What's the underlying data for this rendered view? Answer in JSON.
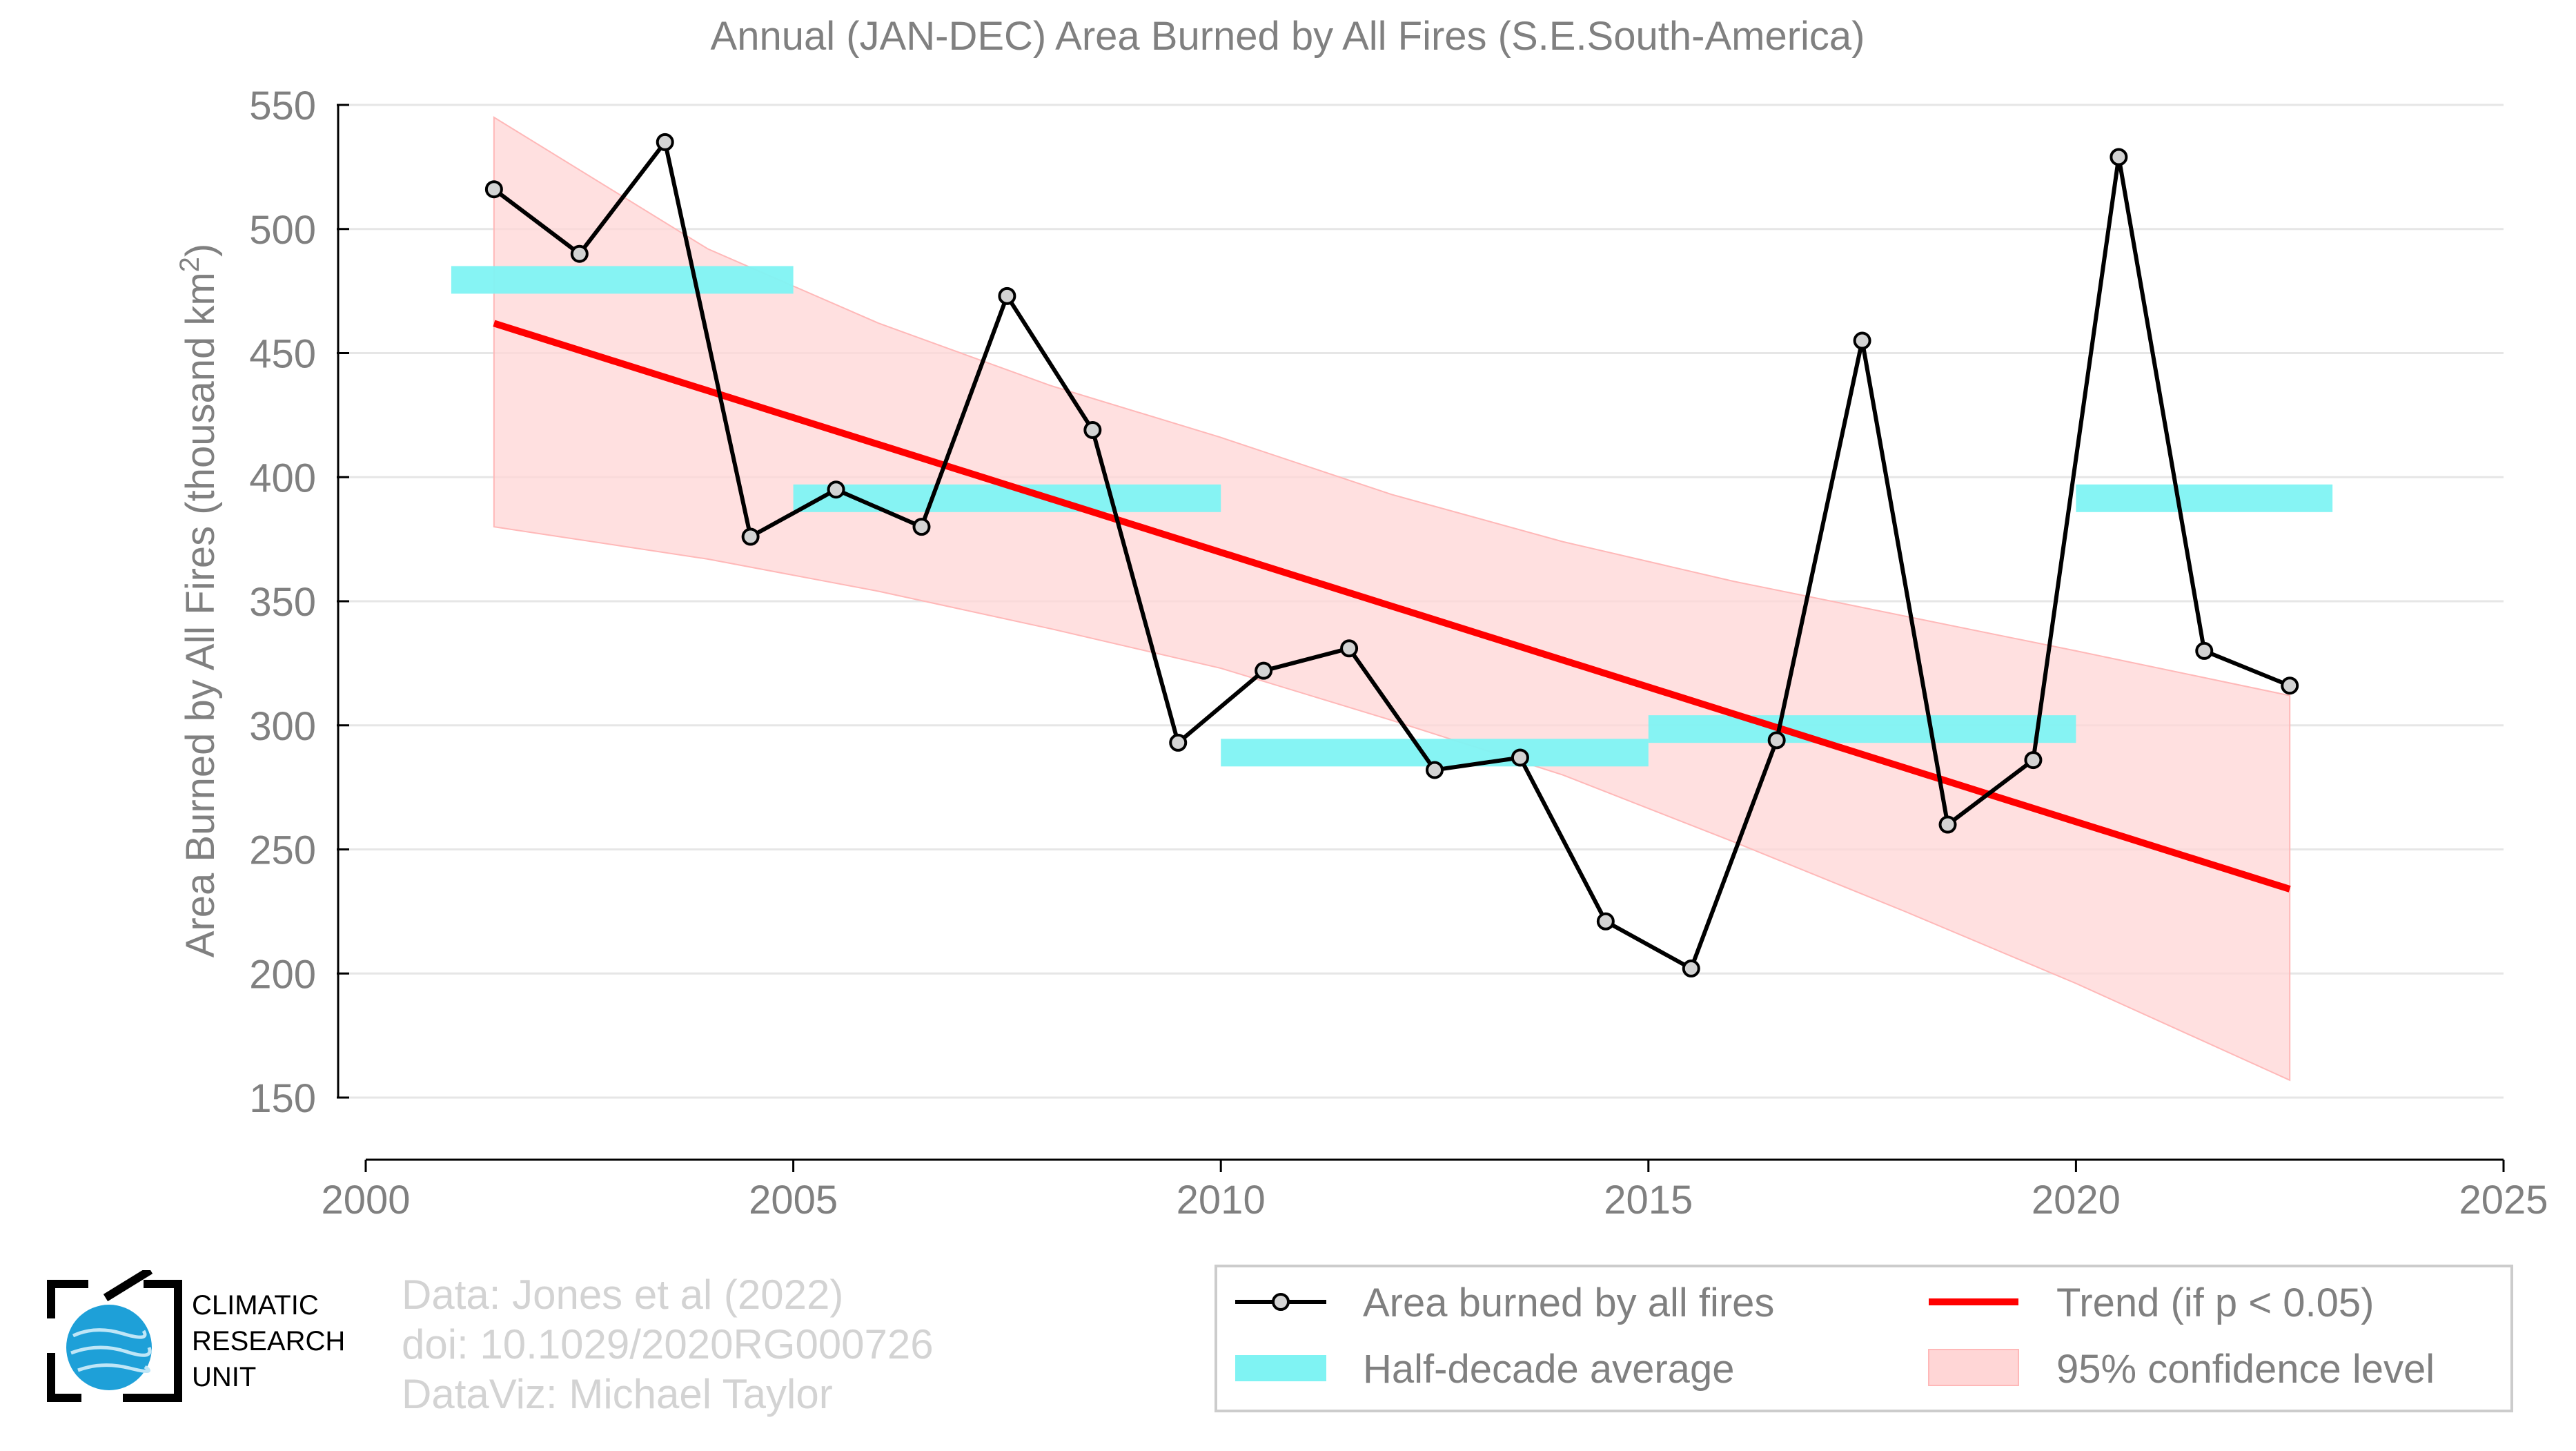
{
  "chart_data": {
    "type": "line",
    "title": "Annual (JAN-DEC) Area Burned by All Fires (S.E.South-America)",
    "ylabel": "Area Burned by All Fires (thousand km",
    "ylabel_sup": "2",
    "ylabel_close": ")",
    "xlim": [
      2000,
      2025
    ],
    "ylim": [
      150,
      550
    ],
    "x_ticks": [
      "2000",
      "2005",
      "2010",
      "2015",
      "2020",
      "2025"
    ],
    "y_ticks": [
      "550",
      "500",
      "450",
      "400",
      "350",
      "300",
      "250",
      "200",
      "150"
    ],
    "grid": "horizontal",
    "legend_position": "bottom-right",
    "series": [
      {
        "name": "Area burned by all fires",
        "color": "#000000",
        "marker_fill": "#d3d3d3",
        "x": [
          2001.5,
          2002.5,
          2003.5,
          2004.5,
          2005.5,
          2006.5,
          2007.5,
          2008.5,
          2009.5,
          2010.5,
          2011.5,
          2012.5,
          2013.5,
          2014.5,
          2015.5,
          2016.5,
          2017.5,
          2018.5,
          2019.5,
          2020.5,
          2021.5,
          2022.5
        ],
        "values": [
          516,
          490,
          535,
          376,
          395,
          380,
          473,
          419,
          293,
          322,
          331,
          282,
          287,
          221,
          202,
          294,
          455,
          260,
          286,
          529,
          330,
          316
        ]
      }
    ],
    "half_decade_average": {
      "name": "Half-decade average",
      "color": "#7ff3f3",
      "segments": [
        {
          "x0": 2001,
          "x1": 2005,
          "y": 479.5
        },
        {
          "x0": 2005,
          "x1": 2010,
          "y": 391.5
        },
        {
          "x0": 2010,
          "x1": 2015,
          "y": 289.0
        },
        {
          "x0": 2015,
          "x1": 2020,
          "y": 298.5
        },
        {
          "x0": 2020,
          "x1": 2023,
          "y": 391.5
        }
      ]
    },
    "trend": {
      "name": "Trend (if p < 0.05)",
      "color": "#ff0000",
      "x": [
        2001.5,
        2022.5
      ],
      "y": [
        462,
        234
      ]
    },
    "confidence": {
      "name": "95% confidence level",
      "color": "#ffd6d6",
      "x": [
        2001.5,
        2004,
        2006,
        2008,
        2010,
        2012,
        2014,
        2016,
        2018,
        2020,
        2022.5
      ],
      "upper": [
        545,
        492,
        462,
        437,
        416,
        393,
        374,
        358,
        344,
        330,
        312
      ],
      "lower": [
        380,
        367,
        354,
        339,
        323,
        302,
        280,
        253,
        225,
        196,
        157
      ]
    }
  },
  "credits": {
    "line1": "Data: Jones et al (2022)",
    "line2": "doi: 10.1029/2020RG000726",
    "line3": "DataViz: Michael Taylor"
  },
  "logo": {
    "line1": "CLIMATIC",
    "line2": "RESEARCH",
    "line3": "UNIT"
  }
}
